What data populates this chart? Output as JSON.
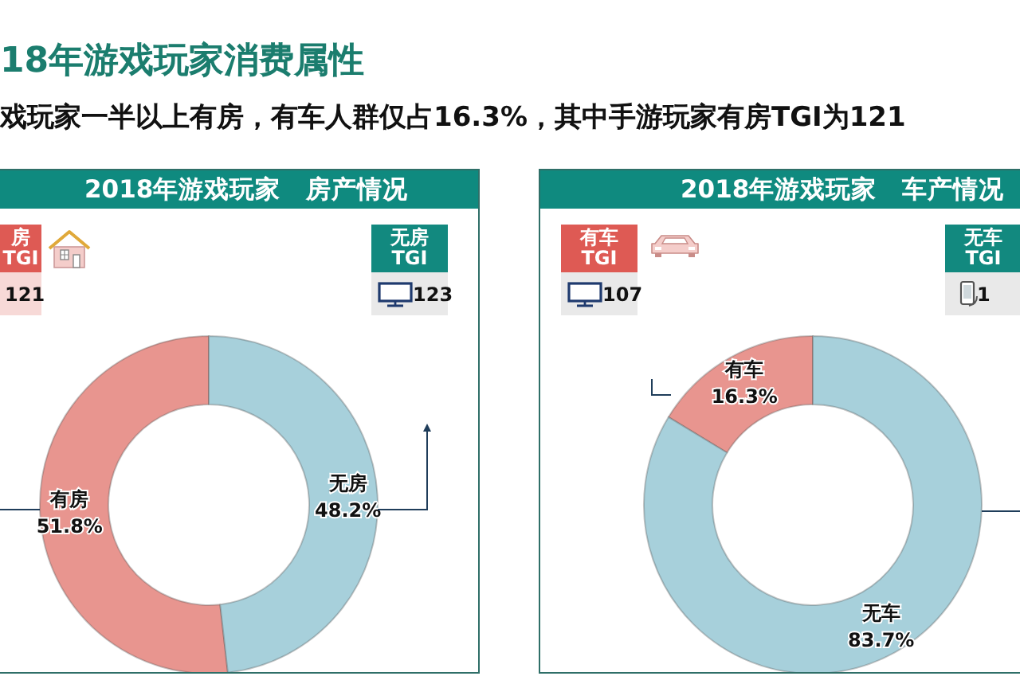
{
  "chart_data": [
    {
      "type": "other",
      "title": "18年游戏玩家消费属性",
      "subtitle": "戏玩家一半以上有房，有车人群仅占16.3%，其中手游玩家有房TGI为121"
    },
    {
      "type": "donut",
      "title": "2018年游戏玩家　房产情况",
      "categories": [
        "有房",
        "无房"
      ],
      "values": [
        51.8,
        48.2
      ],
      "colors": [
        "#e8958f",
        "#a7d0db"
      ],
      "value_labels": [
        "51.8%",
        "48.2%"
      ],
      "annotations": [
        "房 TGI",
        "121",
        "无房 TGI",
        "123"
      ]
    },
    {
      "type": "donut",
      "title": "2018年游戏玩家　车产情况",
      "categories": [
        "有车",
        "无车"
      ],
      "values": [
        16.3,
        83.7
      ],
      "colors": [
        "#e8958f",
        "#a7d0db"
      ],
      "value_labels": [
        "16.3%",
        "83.7%"
      ],
      "annotations": [
        "有车 TGI",
        "107",
        "无车 TGI",
        "1"
      ]
    }
  ]
}
